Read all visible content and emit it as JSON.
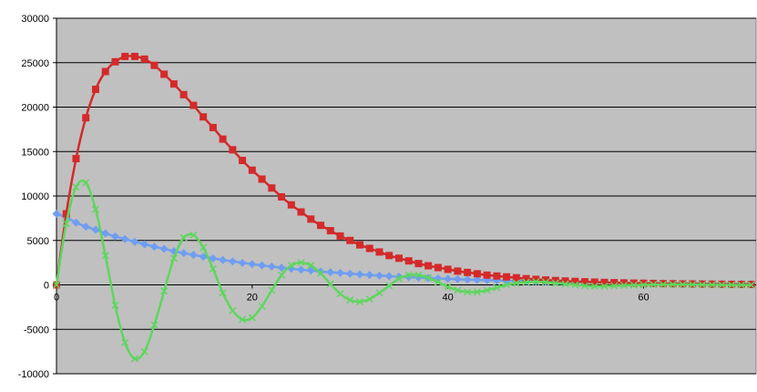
{
  "chart_data": {
    "type": "line",
    "title": "",
    "xlabel": "",
    "ylabel": "",
    "xlim": [
      0,
      71.5
    ],
    "ylim": [
      -10000,
      30000
    ],
    "x_ticks": [
      0,
      20,
      40,
      60
    ],
    "x_tick_labels": [
      "0",
      "20",
      "40",
      "60"
    ],
    "y_ticks": [
      -10000,
      -5000,
      0,
      5000,
      10000,
      15000,
      20000,
      25000,
      30000
    ],
    "y_tick_labels": [
      "-10000",
      "-5000",
      "0",
      "5000",
      "10000",
      "15000",
      "20000",
      "25000",
      "30000"
    ],
    "grid": "horizontal",
    "plot_background": "#c0c0c0",
    "legend": "none",
    "x_values": [
      0,
      1,
      2,
      3,
      4,
      5,
      6,
      7,
      8,
      9,
      10,
      11,
      12,
      13,
      14,
      15,
      16,
      17,
      18,
      19,
      20,
      21,
      22,
      23,
      24,
      25,
      26,
      27,
      28,
      29,
      30,
      31,
      32,
      33,
      34,
      35,
      36,
      37,
      38,
      39,
      40,
      41,
      42,
      43,
      44,
      45,
      46,
      47,
      48,
      49,
      50,
      51,
      52,
      53,
      54,
      55,
      56,
      57,
      58,
      59,
      60,
      61,
      62,
      63,
      64,
      65,
      66,
      67,
      68,
      69,
      70,
      71
    ],
    "series": [
      {
        "name": "",
        "color": "#6f9ef0",
        "marker": "diamond",
        "values": [
          8000,
          7600,
          7000,
          6550,
          6200,
          5800,
          5450,
          5150,
          4850,
          4570,
          4300,
          4050,
          3800,
          3580,
          3370,
          3170,
          2980,
          2800,
          2640,
          2480,
          2330,
          2190,
          2060,
          1940,
          1820,
          1710,
          1610,
          1510,
          1420,
          1340,
          1260,
          1180,
          1110,
          1050,
          980,
          920,
          870,
          820,
          770,
          720,
          680,
          640,
          600,
          560,
          530,
          500,
          470,
          440,
          420,
          390,
          370,
          350,
          330,
          310,
          290,
          270,
          260,
          240,
          230,
          210,
          200,
          190,
          180,
          170,
          160,
          150,
          140,
          130,
          120,
          115,
          110,
          105
        ]
      },
      {
        "name": "",
        "color": "#d42a2a",
        "marker": "square",
        "values": [
          0,
          8000,
          14200,
          18800,
          22000,
          24000,
          25100,
          25700,
          25700,
          25400,
          24700,
          23700,
          22600,
          21400,
          20200,
          18900,
          17700,
          16400,
          15200,
          14000,
          12900,
          11900,
          10900,
          9900,
          9000,
          8200,
          7400,
          6700,
          6100,
          5500,
          5000,
          4500,
          4100,
          3700,
          3300,
          3000,
          2700,
          2400,
          2150,
          1950,
          1750,
          1550,
          1400,
          1250,
          1100,
          1000,
          900,
          800,
          700,
          620,
          550,
          490,
          440,
          390,
          350,
          310,
          280,
          250,
          220,
          200,
          180,
          160,
          140,
          125,
          110,
          100,
          90,
          80,
          70,
          62,
          55,
          50
        ]
      },
      {
        "name": "",
        "color": "#5ed65e",
        "marker": "x",
        "values": [
          0,
          6900,
          11000,
          11500,
          8500,
          3300,
          -2300,
          -6500,
          -8300,
          -7500,
          -4500,
          -700,
          3000,
          5300,
          5600,
          4200,
          1800,
          -900,
          -2900,
          -3900,
          -3700,
          -2400,
          -600,
          1100,
          2200,
          2500,
          2200,
          1300,
          100,
          -1000,
          -1700,
          -1900,
          -1600,
          -900,
          -100,
          700,
          1100,
          1100,
          800,
          300,
          -200,
          -600,
          -800,
          -800,
          -600,
          -300,
          0,
          200,
          300,
          350,
          300,
          200,
          100,
          0,
          -100,
          -150,
          -150,
          -100,
          -60,
          -30,
          0,
          30,
          40,
          45,
          40,
          30,
          20,
          10,
          0,
          -10,
          -10,
          0
        ]
      }
    ]
  }
}
